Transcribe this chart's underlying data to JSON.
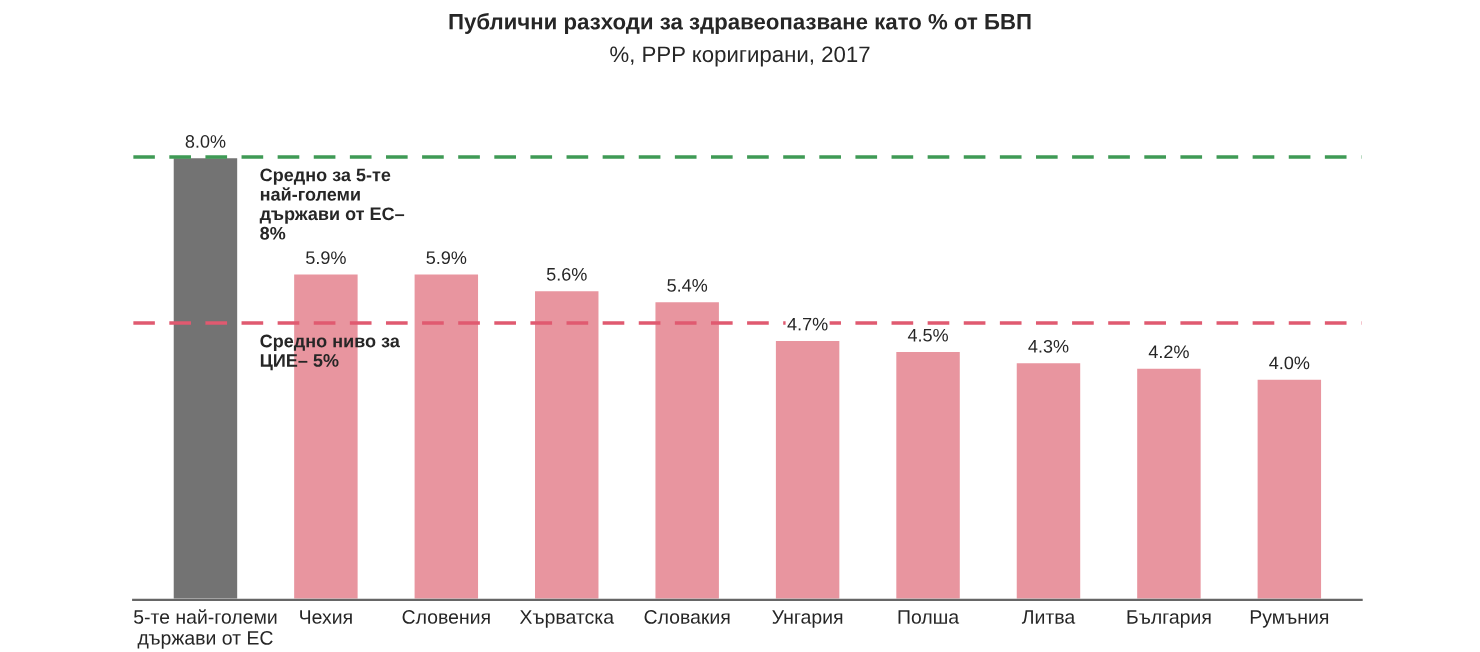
{
  "chart_data": {
    "type": "bar",
    "title": "Публични разходи за здравеопазване като % от БВП",
    "subtitle": "%, PPP коригирани, 2017",
    "categories": [
      "5-те най-големи\nдържави от ЕС",
      "Чехия",
      "Словения",
      "Хърватска",
      "Словакия",
      "Унгария",
      "Полша",
      "Литва",
      "България",
      "Румъния"
    ],
    "values": [
      8.0,
      5.9,
      5.9,
      5.6,
      5.4,
      4.7,
      4.5,
      4.3,
      4.2,
      4.0
    ],
    "value_labels": [
      "8.0%",
      "5.9%",
      "5.9%",
      "5.6%",
      "5.4%",
      "4.7%",
      "4.5%",
      "4.3%",
      "4.2%",
      "4.0%"
    ],
    "colors": [
      "#737373",
      "#e8959f",
      "#e8959f",
      "#e8959f",
      "#e8959f",
      "#e8959f",
      "#e8959f",
      "#e8959f",
      "#e8959f",
      "#e8959f"
    ],
    "tick_labels": "x",
    "grid": false,
    "ref_lines": [
      {
        "axis": "y",
        "value": 8,
        "label": "Средно за 5-те\nнай-големи\nдържави от ЕС–\n8%",
        "color": "#3f9a55",
        "line_style": "dashed"
      },
      {
        "axis": "y",
        "value": 5,
        "label": "Средно ниво за\nЦИЕ– 5%",
        "color": "#e05a70",
        "line_style": "dashed"
      }
    ]
  }
}
